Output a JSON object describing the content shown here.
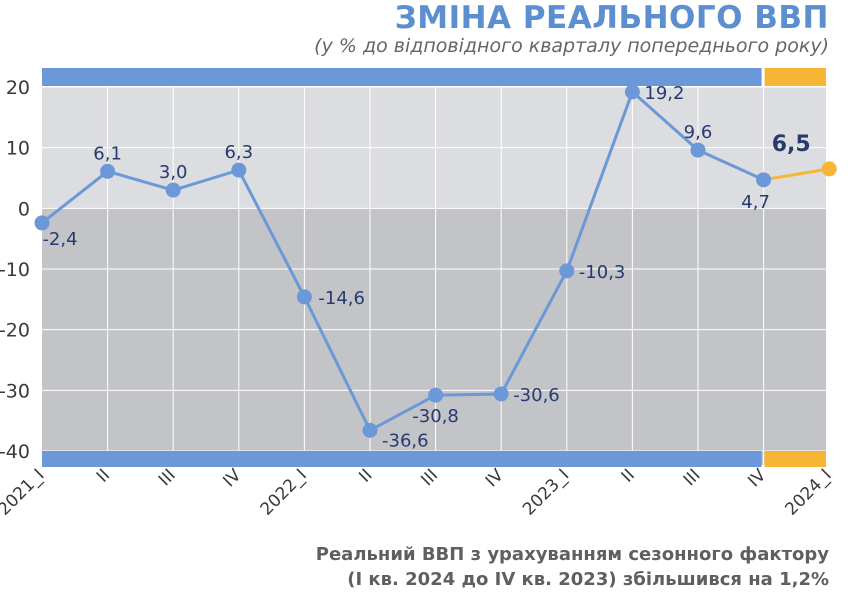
{
  "title": "ЗМІНА РЕАЛЬНОГО ВВП",
  "subtitle": "(у % до відповідного кварталу попереднього року)",
  "note": {
    "line1": "Реальний ВВП з урахуванням сезонного фактору",
    "line2": "(І кв. 2024 до IV кв. 2023) збільшився на 1,2%"
  },
  "colors": {
    "main_line": "#6b98d6",
    "forecast_line": "#f7b536",
    "label_text": "#283a6e",
    "band_blue": "#6b98d6",
    "band_orange": "#f7b536",
    "plot_bg_positive": "#dcdde0",
    "plot_bg_negative": "#c3c4c8",
    "grid": "#ffffff",
    "axis_text": "#3a3a3a"
  },
  "chart_data": {
    "type": "line",
    "title": "ЗМІНА РЕАЛЬНОГО ВВП",
    "subtitle": "(у % до відповідного кварталу попереднього року)",
    "xlabel": "",
    "ylabel": "",
    "ylim": [
      -40,
      20
    ],
    "yticks": [
      20,
      10,
      0,
      -10,
      -20,
      -30,
      -40
    ],
    "ytick_labels": [
      "20",
      "10",
      "0",
      "-10",
      "-20",
      "-30",
      "-40"
    ],
    "grid": true,
    "categories": [
      "2021_I",
      "II",
      "III",
      "IV",
      "2022_I",
      "II",
      "III",
      "IV",
      "2023_I",
      "II",
      "III",
      "IV",
      "2024_I"
    ],
    "values": [
      -2.4,
      6.1,
      3.0,
      6.3,
      -14.6,
      -36.6,
      -30.8,
      -30.6,
      -10.3,
      19.2,
      9.6,
      4.7,
      6.5
    ],
    "data_labels": [
      "-2,4",
      "6,1",
      "3,0",
      "6,3",
      "-14,6",
      "-36,6",
      "-30,8",
      "-30,6",
      "-10,3",
      "19,2",
      "9,6",
      "4,7",
      "6,5"
    ],
    "highlight_last_point": true
  }
}
